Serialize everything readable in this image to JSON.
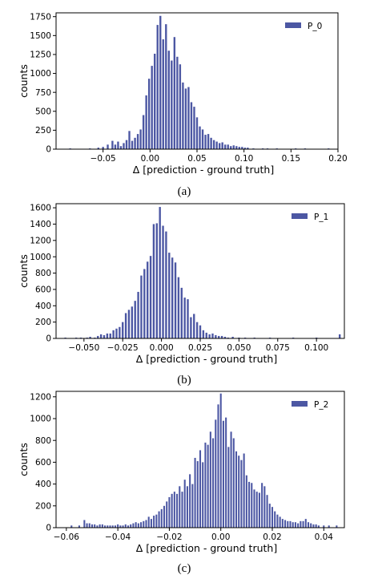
{
  "colors": {
    "bar": "#4c57a3",
    "axis": "#000000",
    "background": "#ffffff"
  },
  "chart_data": [
    {
      "type": "bar",
      "caption": "(a)",
      "xlabel": "Δ [prediction - ground truth]",
      "ylabel": "counts",
      "legend": {
        "label": "P_0",
        "placement": "top-right"
      },
      "xlim": [
        -0.1,
        0.2
      ],
      "ylim": [
        0,
        1800
      ],
      "xticks": [
        -0.05,
        0.0,
        0.05,
        0.1,
        0.15,
        0.2
      ],
      "xtick_labels": [
        "−0.05",
        "0.00",
        "0.05",
        "0.10",
        "0.15",
        "0.20"
      ],
      "yticks": [
        0,
        250,
        500,
        750,
        1000,
        1250,
        1500,
        1750
      ],
      "ytick_labels": [
        "0",
        "250",
        "500",
        "750",
        "1000",
        "1250",
        "1500",
        "1750"
      ],
      "bin_width": 0.0028,
      "bins": [
        [
          -0.085,
          10
        ],
        [
          -0.064,
          10
        ],
        [
          -0.055,
          20
        ],
        [
          -0.05,
          30
        ],
        [
          -0.045,
          60
        ],
        [
          -0.04,
          110
        ],
        [
          -0.037,
          60
        ],
        [
          -0.034,
          100
        ],
        [
          -0.031,
          40
        ],
        [
          -0.028,
          80
        ],
        [
          -0.025,
          120
        ],
        [
          -0.022,
          240
        ],
        [
          -0.019,
          110
        ],
        [
          -0.016,
          150
        ],
        [
          -0.013,
          200
        ],
        [
          -0.01,
          260
        ],
        [
          -0.007,
          450
        ],
        [
          -0.004,
          710
        ],
        [
          -0.001,
          930
        ],
        [
          0.002,
          1100
        ],
        [
          0.005,
          1260
        ],
        [
          0.008,
          1640
        ],
        [
          0.011,
          1760
        ],
        [
          0.014,
          1450
        ],
        [
          0.017,
          1650
        ],
        [
          0.02,
          1300
        ],
        [
          0.023,
          1170
        ],
        [
          0.026,
          1480
        ],
        [
          0.029,
          1220
        ],
        [
          0.032,
          1120
        ],
        [
          0.035,
          880
        ],
        [
          0.038,
          800
        ],
        [
          0.041,
          820
        ],
        [
          0.044,
          620
        ],
        [
          0.047,
          560
        ],
        [
          0.05,
          420
        ],
        [
          0.053,
          300
        ],
        [
          0.056,
          260
        ],
        [
          0.059,
          190
        ],
        [
          0.062,
          200
        ],
        [
          0.065,
          150
        ],
        [
          0.068,
          120
        ],
        [
          0.071,
          100
        ],
        [
          0.074,
          80
        ],
        [
          0.077,
          90
        ],
        [
          0.08,
          60
        ],
        [
          0.083,
          60
        ],
        [
          0.086,
          40
        ],
        [
          0.089,
          50
        ],
        [
          0.092,
          40
        ],
        [
          0.095,
          30
        ],
        [
          0.098,
          30
        ],
        [
          0.101,
          20
        ],
        [
          0.104,
          20
        ],
        [
          0.11,
          10
        ],
        [
          0.12,
          10
        ],
        [
          0.125,
          10
        ],
        [
          0.135,
          10
        ],
        [
          0.155,
          10
        ],
        [
          0.165,
          10
        ],
        [
          0.19,
          10
        ]
      ]
    },
    {
      "type": "bar",
      "caption": "(b)",
      "xlabel": "Δ [prediction - ground truth]",
      "ylabel": "counts",
      "legend": {
        "label": "P_1",
        "placement": "top-right"
      },
      "xlim": [
        -0.068,
        0.118
      ],
      "ylim": [
        0,
        1650
      ],
      "xticks": [
        -0.05,
        -0.025,
        0.0,
        0.025,
        0.05,
        0.075,
        0.1
      ],
      "xtick_labels": [
        "−0.050",
        "−0.025",
        "0.000",
        "0.025",
        "0.050",
        "0.075",
        "0.100"
      ],
      "yticks": [
        0,
        200,
        400,
        600,
        800,
        1000,
        1200,
        1400,
        1600
      ],
      "ytick_labels": [
        "0",
        "200",
        "400",
        "600",
        "800",
        "1000",
        "1200",
        "1400",
        "1600"
      ],
      "bin_width": 0.0017,
      "bins": [
        [
          -0.062,
          10
        ],
        [
          -0.055,
          10
        ],
        [
          -0.052,
          10
        ],
        [
          -0.048,
          10
        ],
        [
          -0.046,
          20
        ],
        [
          -0.043,
          10
        ],
        [
          -0.041,
          30
        ],
        [
          -0.039,
          50
        ],
        [
          -0.037,
          40
        ],
        [
          -0.035,
          60
        ],
        [
          -0.033,
          60
        ],
        [
          -0.031,
          100
        ],
        [
          -0.029,
          120
        ],
        [
          -0.027,
          140
        ],
        [
          -0.025,
          200
        ],
        [
          -0.023,
          310
        ],
        [
          -0.021,
          350
        ],
        [
          -0.019,
          390
        ],
        [
          -0.017,
          460
        ],
        [
          -0.015,
          570
        ],
        [
          -0.013,
          770
        ],
        [
          -0.011,
          850
        ],
        [
          -0.009,
          940
        ],
        [
          -0.007,
          1010
        ],
        [
          -0.005,
          1400
        ],
        [
          -0.003,
          1410
        ],
        [
          -0.001,
          1610
        ],
        [
          0.001,
          1380
        ],
        [
          0.003,
          1310
        ],
        [
          0.005,
          1050
        ],
        [
          0.007,
          990
        ],
        [
          0.009,
          930
        ],
        [
          0.011,
          750
        ],
        [
          0.013,
          620
        ],
        [
          0.015,
          500
        ],
        [
          0.017,
          480
        ],
        [
          0.019,
          260
        ],
        [
          0.021,
          300
        ],
        [
          0.023,
          200
        ],
        [
          0.025,
          160
        ],
        [
          0.027,
          100
        ],
        [
          0.029,
          70
        ],
        [
          0.031,
          50
        ],
        [
          0.033,
          60
        ],
        [
          0.035,
          40
        ],
        [
          0.037,
          30
        ],
        [
          0.039,
          30
        ],
        [
          0.041,
          20
        ],
        [
          0.043,
          10
        ],
        [
          0.046,
          20
        ],
        [
          0.05,
          10
        ],
        [
          0.054,
          10
        ],
        [
          0.06,
          10
        ],
        [
          0.07,
          10
        ],
        [
          0.085,
          10
        ],
        [
          0.1,
          10
        ],
        [
          0.115,
          50
        ]
      ]
    },
    {
      "type": "bar",
      "caption": "(c)",
      "xlabel": "Δ [prediction - ground truth]",
      "ylabel": "counts",
      "legend": {
        "label": "P_2",
        "placement": "top-right"
      },
      "xlim": [
        -0.064,
        0.048
      ],
      "ylim": [
        0,
        1250
      ],
      "xticks": [
        -0.06,
        -0.04,
        -0.02,
        0.0,
        0.02,
        0.04
      ],
      "xtick_labels": [
        "−0.06",
        "−0.04",
        "−0.02",
        "0.00",
        "0.02",
        "0.04"
      ],
      "yticks": [
        0,
        200,
        400,
        600,
        800,
        1000,
        1200
      ],
      "ytick_labels": [
        "0",
        "200",
        "400",
        "600",
        "800",
        "1000",
        "1200"
      ],
      "bin_width": 0.0009,
      "bins": [
        [
          -0.058,
          20
        ],
        [
          -0.055,
          20
        ],
        [
          -0.053,
          70
        ],
        [
          -0.052,
          40
        ],
        [
          -0.051,
          40
        ],
        [
          -0.05,
          30
        ],
        [
          -0.049,
          30
        ],
        [
          -0.048,
          20
        ],
        [
          -0.047,
          30
        ],
        [
          -0.046,
          30
        ],
        [
          -0.045,
          20
        ],
        [
          -0.044,
          20
        ],
        [
          -0.043,
          20
        ],
        [
          -0.042,
          20
        ],
        [
          -0.041,
          20
        ],
        [
          -0.04,
          30
        ],
        [
          -0.039,
          20
        ],
        [
          -0.038,
          20
        ],
        [
          -0.037,
          30
        ],
        [
          -0.036,
          20
        ],
        [
          -0.035,
          30
        ],
        [
          -0.034,
          40
        ],
        [
          -0.033,
          50
        ],
        [
          -0.032,
          40
        ],
        [
          -0.031,
          50
        ],
        [
          -0.03,
          60
        ],
        [
          -0.029,
          70
        ],
        [
          -0.028,
          100
        ],
        [
          -0.027,
          80
        ],
        [
          -0.026,
          110
        ],
        [
          -0.025,
          120
        ],
        [
          -0.024,
          150
        ],
        [
          -0.023,
          170
        ],
        [
          -0.022,
          200
        ],
        [
          -0.021,
          240
        ],
        [
          -0.02,
          280
        ],
        [
          -0.019,
          310
        ],
        [
          -0.018,
          330
        ],
        [
          -0.017,
          310
        ],
        [
          -0.016,
          380
        ],
        [
          -0.015,
          330
        ],
        [
          -0.014,
          440
        ],
        [
          -0.013,
          380
        ],
        [
          -0.012,
          490
        ],
        [
          -0.011,
          400
        ],
        [
          -0.01,
          640
        ],
        [
          -0.009,
          610
        ],
        [
          -0.008,
          710
        ],
        [
          -0.007,
          600
        ],
        [
          -0.006,
          780
        ],
        [
          -0.005,
          760
        ],
        [
          -0.004,
          880
        ],
        [
          -0.003,
          820
        ],
        [
          -0.002,
          990
        ],
        [
          -0.001,
          1130
        ],
        [
          0.0,
          1230
        ],
        [
          0.001,
          980
        ],
        [
          0.002,
          1010
        ],
        [
          0.003,
          740
        ],
        [
          0.004,
          880
        ],
        [
          0.005,
          820
        ],
        [
          0.006,
          700
        ],
        [
          0.007,
          660
        ],
        [
          0.008,
          620
        ],
        [
          0.009,
          680
        ],
        [
          0.01,
          480
        ],
        [
          0.011,
          420
        ],
        [
          0.012,
          410
        ],
        [
          0.013,
          350
        ],
        [
          0.014,
          330
        ],
        [
          0.015,
          320
        ],
        [
          0.016,
          410
        ],
        [
          0.017,
          380
        ],
        [
          0.018,
          300
        ],
        [
          0.019,
          220
        ],
        [
          0.02,
          190
        ],
        [
          0.021,
          150
        ],
        [
          0.022,
          120
        ],
        [
          0.023,
          100
        ],
        [
          0.024,
          80
        ],
        [
          0.025,
          70
        ],
        [
          0.026,
          60
        ],
        [
          0.027,
          60
        ],
        [
          0.028,
          50
        ],
        [
          0.029,
          50
        ],
        [
          0.03,
          40
        ],
        [
          0.031,
          60
        ],
        [
          0.032,
          60
        ],
        [
          0.033,
          80
        ],
        [
          0.034,
          50
        ],
        [
          0.035,
          40
        ],
        [
          0.036,
          30
        ],
        [
          0.037,
          30
        ],
        [
          0.038,
          20
        ],
        [
          0.04,
          20
        ],
        [
          0.042,
          20
        ],
        [
          0.045,
          20
        ]
      ]
    }
  ]
}
